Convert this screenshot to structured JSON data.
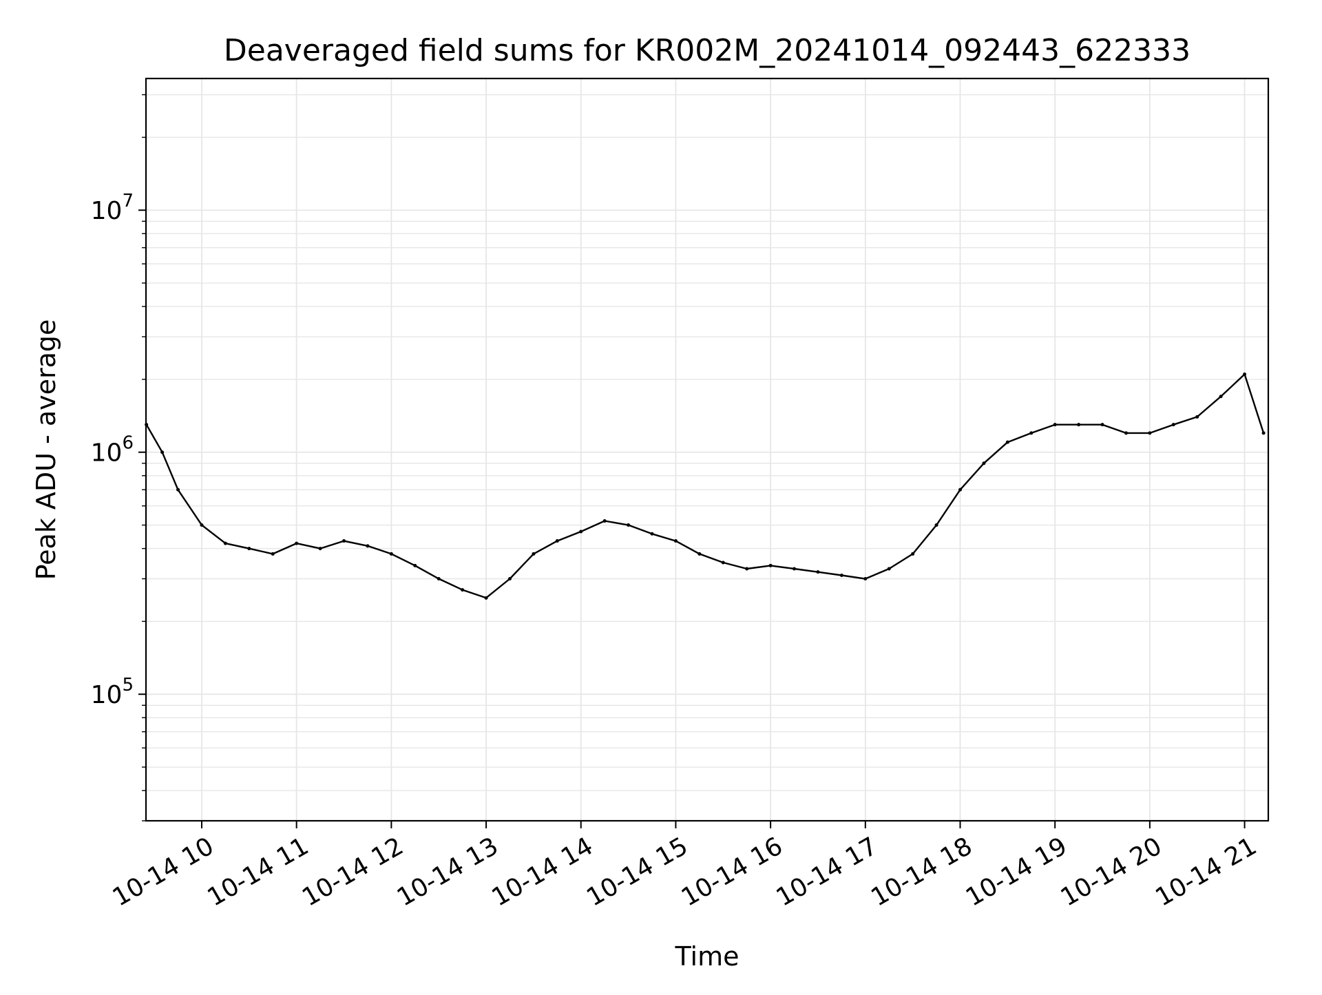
{
  "chart_data": {
    "type": "line",
    "title": "Deaveraged field sums for KR002M_20241014_092443_622333",
    "xlabel": "Time",
    "ylabel": "Peak ADU - average",
    "yscale": "log",
    "ylim": [
      30000,
      35000000
    ],
    "xlim": [
      "2024-10-14 09:24:43",
      "2024-10-14 21:15:00"
    ],
    "grid": true,
    "line_color": "#000000",
    "grid_color": "#e6e6e6",
    "x_ticks": [
      {
        "value": "2024-10-14 10:00",
        "label": "10-14 10"
      },
      {
        "value": "2024-10-14 11:00",
        "label": "10-14 11"
      },
      {
        "value": "2024-10-14 12:00",
        "label": "10-14 12"
      },
      {
        "value": "2024-10-14 13:00",
        "label": "10-14 13"
      },
      {
        "value": "2024-10-14 14:00",
        "label": "10-14 14"
      },
      {
        "value": "2024-10-14 15:00",
        "label": "10-14 15"
      },
      {
        "value": "2024-10-14 16:00",
        "label": "10-14 16"
      },
      {
        "value": "2024-10-14 17:00",
        "label": "10-14 17"
      },
      {
        "value": "2024-10-14 18:00",
        "label": "10-14 18"
      },
      {
        "value": "2024-10-14 19:00",
        "label": "10-14 19"
      },
      {
        "value": "2024-10-14 20:00",
        "label": "10-14 20"
      },
      {
        "value": "2024-10-14 21:00",
        "label": "10-14 21"
      }
    ],
    "y_ticks": [
      {
        "value": 100000,
        "base": "10",
        "exp": "5"
      },
      {
        "value": 1000000,
        "base": "10",
        "exp": "6"
      },
      {
        "value": 10000000,
        "base": "10",
        "exp": "7"
      }
    ],
    "series": [
      {
        "x": [
          "2024-10-14 09:25",
          "2024-10-14 09:35",
          "2024-10-14 09:45",
          "2024-10-14 10:00",
          "2024-10-14 10:15",
          "2024-10-14 10:30",
          "2024-10-14 10:45",
          "2024-10-14 11:00",
          "2024-10-14 11:15",
          "2024-10-14 11:30",
          "2024-10-14 11:45",
          "2024-10-14 12:00",
          "2024-10-14 12:15",
          "2024-10-14 12:30",
          "2024-10-14 12:45",
          "2024-10-14 13:00",
          "2024-10-14 13:15",
          "2024-10-14 13:30",
          "2024-10-14 13:45",
          "2024-10-14 14:00",
          "2024-10-14 14:15",
          "2024-10-14 14:30",
          "2024-10-14 14:45",
          "2024-10-14 15:00",
          "2024-10-14 15:15",
          "2024-10-14 15:30",
          "2024-10-14 15:45",
          "2024-10-14 16:00",
          "2024-10-14 16:15",
          "2024-10-14 16:30",
          "2024-10-14 16:45",
          "2024-10-14 17:00",
          "2024-10-14 17:15",
          "2024-10-14 17:30",
          "2024-10-14 17:45",
          "2024-10-14 18:00",
          "2024-10-14 18:15",
          "2024-10-14 18:30",
          "2024-10-14 18:45",
          "2024-10-14 19:00",
          "2024-10-14 19:15",
          "2024-10-14 19:30",
          "2024-10-14 19:45",
          "2024-10-14 20:00",
          "2024-10-14 20:15",
          "2024-10-14 20:30",
          "2024-10-14 20:45",
          "2024-10-14 21:00",
          "2024-10-14 21:12"
        ],
        "y": [
          1300000,
          1000000,
          700000,
          500000,
          420000,
          400000,
          380000,
          420000,
          400000,
          430000,
          410000,
          380000,
          340000,
          300000,
          270000,
          250000,
          300000,
          380000,
          430000,
          470000,
          520000,
          500000,
          460000,
          430000,
          380000,
          350000,
          330000,
          340000,
          330000,
          320000,
          310000,
          300000,
          330000,
          380000,
          500000,
          700000,
          900000,
          1100000,
          1200000,
          1300000,
          1300000,
          1300000,
          1200000,
          1200000,
          1300000,
          1400000,
          1700000,
          2100000,
          1200000
        ]
      }
    ]
  }
}
